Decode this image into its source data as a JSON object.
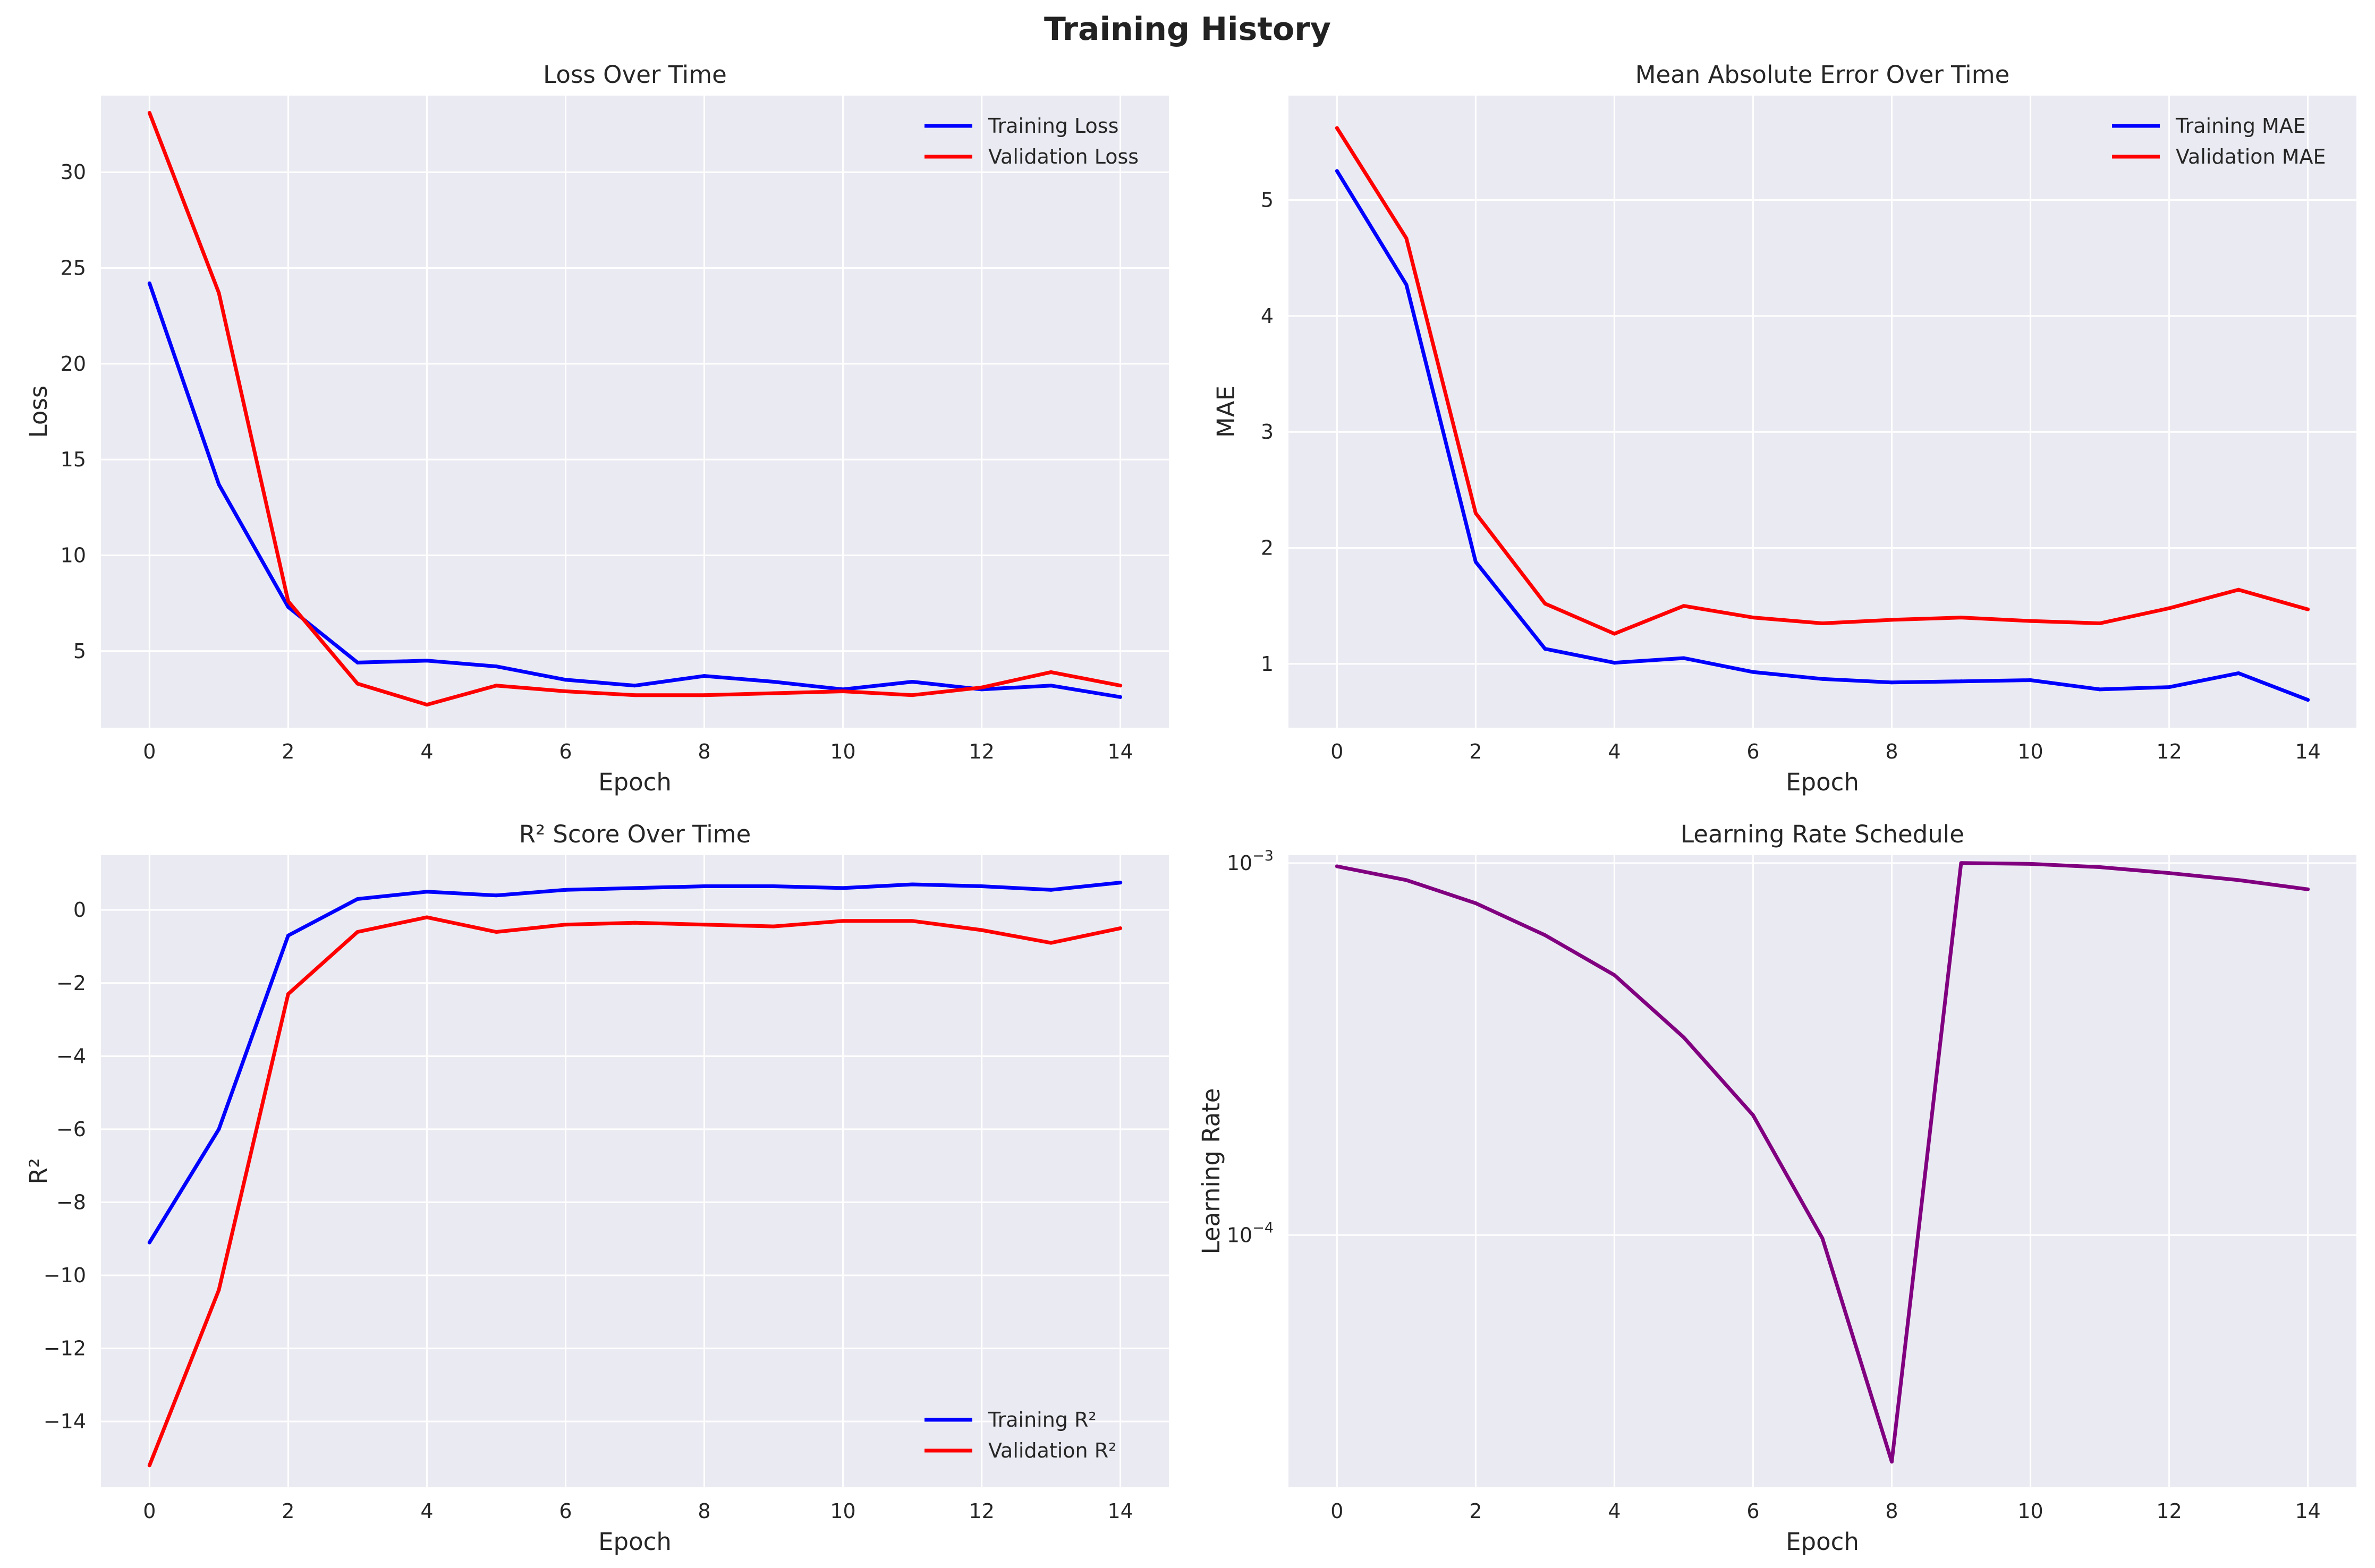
{
  "figure": {
    "title": "Training History"
  },
  "chart_data": [
    {
      "id": "loss",
      "type": "line",
      "title": "Loss Over Time",
      "xlabel": "Epoch",
      "ylabel": "Loss",
      "xlim": [
        -0.7,
        14.7
      ],
      "ylim": [
        1.0,
        34.0
      ],
      "yscale": "linear",
      "xticks": [
        0,
        2,
        4,
        6,
        8,
        10,
        12,
        14
      ],
      "xtick_labels": [
        "0",
        "2",
        "4",
        "6",
        "8",
        "10",
        "12",
        "14"
      ],
      "yticks": [
        5,
        10,
        15,
        20,
        25,
        30
      ],
      "ytick_labels": [
        "5",
        "10",
        "15",
        "20",
        "25",
        "30"
      ],
      "grid": true,
      "legend_position": "upper-right",
      "x": [
        0,
        1,
        2,
        3,
        4,
        5,
        6,
        7,
        8,
        9,
        10,
        11,
        12,
        13,
        14
      ],
      "series": [
        {
          "name": "Training Loss",
          "color": "#0000ff",
          "values": [
            24.2,
            13.7,
            7.3,
            4.4,
            4.5,
            4.2,
            3.5,
            3.2,
            3.7,
            3.4,
            3.0,
            3.4,
            3.0,
            3.2,
            2.6
          ]
        },
        {
          "name": "Validation Loss",
          "color": "#ff0000",
          "values": [
            33.1,
            23.7,
            7.6,
            3.3,
            2.2,
            3.2,
            2.9,
            2.7,
            2.7,
            2.8,
            2.9,
            2.7,
            3.1,
            3.9,
            3.2
          ]
        }
      ]
    },
    {
      "id": "mae",
      "type": "line",
      "title": "Mean Absolute Error Over Time",
      "xlabel": "Epoch",
      "ylabel": "MAE",
      "xlim": [
        -0.7,
        14.7
      ],
      "ylim": [
        0.45,
        5.9
      ],
      "yscale": "linear",
      "xticks": [
        0,
        2,
        4,
        6,
        8,
        10,
        12,
        14
      ],
      "xtick_labels": [
        "0",
        "2",
        "4",
        "6",
        "8",
        "10",
        "12",
        "14"
      ],
      "yticks": [
        1,
        2,
        3,
        4,
        5
      ],
      "ytick_labels": [
        "1",
        "2",
        "3",
        "4",
        "5"
      ],
      "grid": true,
      "legend_position": "upper-right",
      "x": [
        0,
        1,
        2,
        3,
        4,
        5,
        6,
        7,
        8,
        9,
        10,
        11,
        12,
        13,
        14
      ],
      "series": [
        {
          "name": "Training MAE",
          "color": "#0000ff",
          "values": [
            5.25,
            4.27,
            1.88,
            1.13,
            1.01,
            1.05,
            0.93,
            0.87,
            0.84,
            0.85,
            0.86,
            0.78,
            0.8,
            0.92,
            0.69
          ]
        },
        {
          "name": "Validation MAE",
          "color": "#ff0000",
          "values": [
            5.62,
            4.67,
            2.3,
            1.52,
            1.26,
            1.5,
            1.4,
            1.35,
            1.38,
            1.4,
            1.37,
            1.35,
            1.48,
            1.64,
            1.47
          ]
        }
      ]
    },
    {
      "id": "r2",
      "type": "line",
      "title": "R² Score Over Time",
      "xlabel": "Epoch",
      "ylabel": "R²",
      "xlim": [
        -0.7,
        14.7
      ],
      "ylim": [
        -15.8,
        1.5
      ],
      "yscale": "linear",
      "xticks": [
        0,
        2,
        4,
        6,
        8,
        10,
        12,
        14
      ],
      "xtick_labels": [
        "0",
        "2",
        "4",
        "6",
        "8",
        "10",
        "12",
        "14"
      ],
      "yticks": [
        -14,
        -12,
        -10,
        -8,
        -6,
        -4,
        -2,
        0
      ],
      "ytick_labels": [
        "−14",
        "−12",
        "−10",
        "−8",
        "−6",
        "−4",
        "−2",
        "0"
      ],
      "grid": true,
      "legend_position": "lower-right",
      "x": [
        0,
        1,
        2,
        3,
        4,
        5,
        6,
        7,
        8,
        9,
        10,
        11,
        12,
        13,
        14
      ],
      "series": [
        {
          "name": "Training R²",
          "color": "#0000ff",
          "values": [
            -9.1,
            -6.0,
            -0.7,
            0.3,
            0.5,
            0.4,
            0.55,
            0.6,
            0.65,
            0.65,
            0.6,
            0.7,
            0.65,
            0.55,
            0.75
          ]
        },
        {
          "name": "Validation R²",
          "color": "#ff0000",
          "values": [
            -15.2,
            -10.4,
            -2.3,
            -0.6,
            -0.2,
            -0.6,
            -0.4,
            -0.35,
            -0.4,
            -0.45,
            -0.3,
            -0.3,
            -0.55,
            -0.9,
            -0.5
          ]
        }
      ]
    },
    {
      "id": "lr",
      "type": "line",
      "title": "Learning Rate Schedule",
      "xlabel": "Epoch",
      "ylabel": "Learning Rate",
      "xlim": [
        -0.7,
        14.7
      ],
      "ylim": [
        2.1e-05,
        0.00105
      ],
      "yscale": "log",
      "xticks": [
        0,
        2,
        4,
        6,
        8,
        10,
        12,
        14
      ],
      "xtick_labels": [
        "0",
        "2",
        "4",
        "6",
        "8",
        "10",
        "12",
        "14"
      ],
      "yticks": [
        0.0001,
        0.001
      ],
      "ytick_labels": [
        {
          "base": "10",
          "exp": "−4"
        },
        {
          "base": "10",
          "exp": "−3"
        }
      ],
      "grid": true,
      "legend_position": "none",
      "x": [
        0,
        1,
        2,
        3,
        4,
        5,
        6,
        7,
        8,
        9,
        10,
        11,
        12,
        13,
        14
      ],
      "series": [
        {
          "name": "Learning Rate",
          "color": "#800080",
          "values": [
            0.00098,
            0.0009,
            0.00078,
            0.00064,
            0.0005,
            0.00034,
            0.00021,
            9.8e-05,
            2.46e-05,
            0.001,
            0.000995,
            0.000975,
            0.00094,
            0.0009,
            0.00085
          ]
        }
      ]
    }
  ]
}
